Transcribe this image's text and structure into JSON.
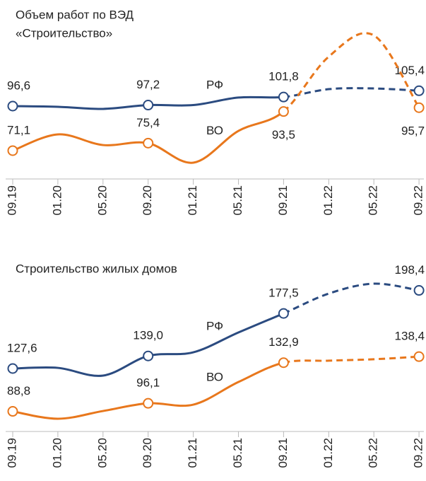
{
  "chart_data": [
    {
      "type": "line",
      "title": [
        "Объем работ по ВЭД",
        "«Строительство»"
      ],
      "categories": [
        "09.19",
        "01.20",
        "05.20",
        "09.20",
        "01.21",
        "05.21",
        "09.21",
        "01.22",
        "05.22",
        "09.22"
      ],
      "dashed_from": 6,
      "series": [
        {
          "name": "РФ",
          "color": "#2b4b80",
          "values": [
            96.6,
            96.2,
            95.0,
            97.2,
            97.2,
            101.5,
            101.8,
            106.3,
            106.7,
            105.4
          ],
          "value_labels": [
            "96,6",
            null,
            null,
            "97,2",
            null,
            null,
            "101,8",
            null,
            null,
            "105,4"
          ]
        },
        {
          "name": "ВО",
          "color": "#e8771c",
          "values": [
            71.1,
            80.4,
            74.3,
            75.4,
            64.2,
            82.4,
            93.5,
            124.9,
            137.1,
            95.7
          ],
          "value_labels": [
            "71,1",
            null,
            null,
            "75,4",
            null,
            null,
            "93,5",
            null,
            null,
            "95,7"
          ]
        }
      ]
    },
    {
      "type": "line",
      "title": [
        "Строительство жилых домов"
      ],
      "categories": [
        "09.19",
        "01.20",
        "05.20",
        "09.20",
        "01.21",
        "05.21",
        "09.21",
        "01.22",
        "05.22",
        "09.22"
      ],
      "dashed_from": 6,
      "series": [
        {
          "name": "РФ",
          "color": "#2b4b80",
          "values": [
            127.6,
            128.2,
            121.2,
            139.0,
            142.3,
            160.3,
            177.5,
            195.5,
            204.5,
            198.4
          ],
          "value_labels": [
            "127,6",
            null,
            null,
            "139,0",
            null,
            null,
            "177,5",
            null,
            null,
            "198,4"
          ]
        },
        {
          "name": "ВО",
          "color": "#e8771c",
          "values": [
            88.8,
            82.1,
            89.1,
            96.1,
            94.9,
            115.4,
            132.9,
            134.7,
            136.0,
            138.4
          ],
          "value_labels": [
            "88,8",
            null,
            null,
            "96,1",
            null,
            null,
            "132,9",
            null,
            null,
            "138,4"
          ]
        }
      ]
    }
  ]
}
